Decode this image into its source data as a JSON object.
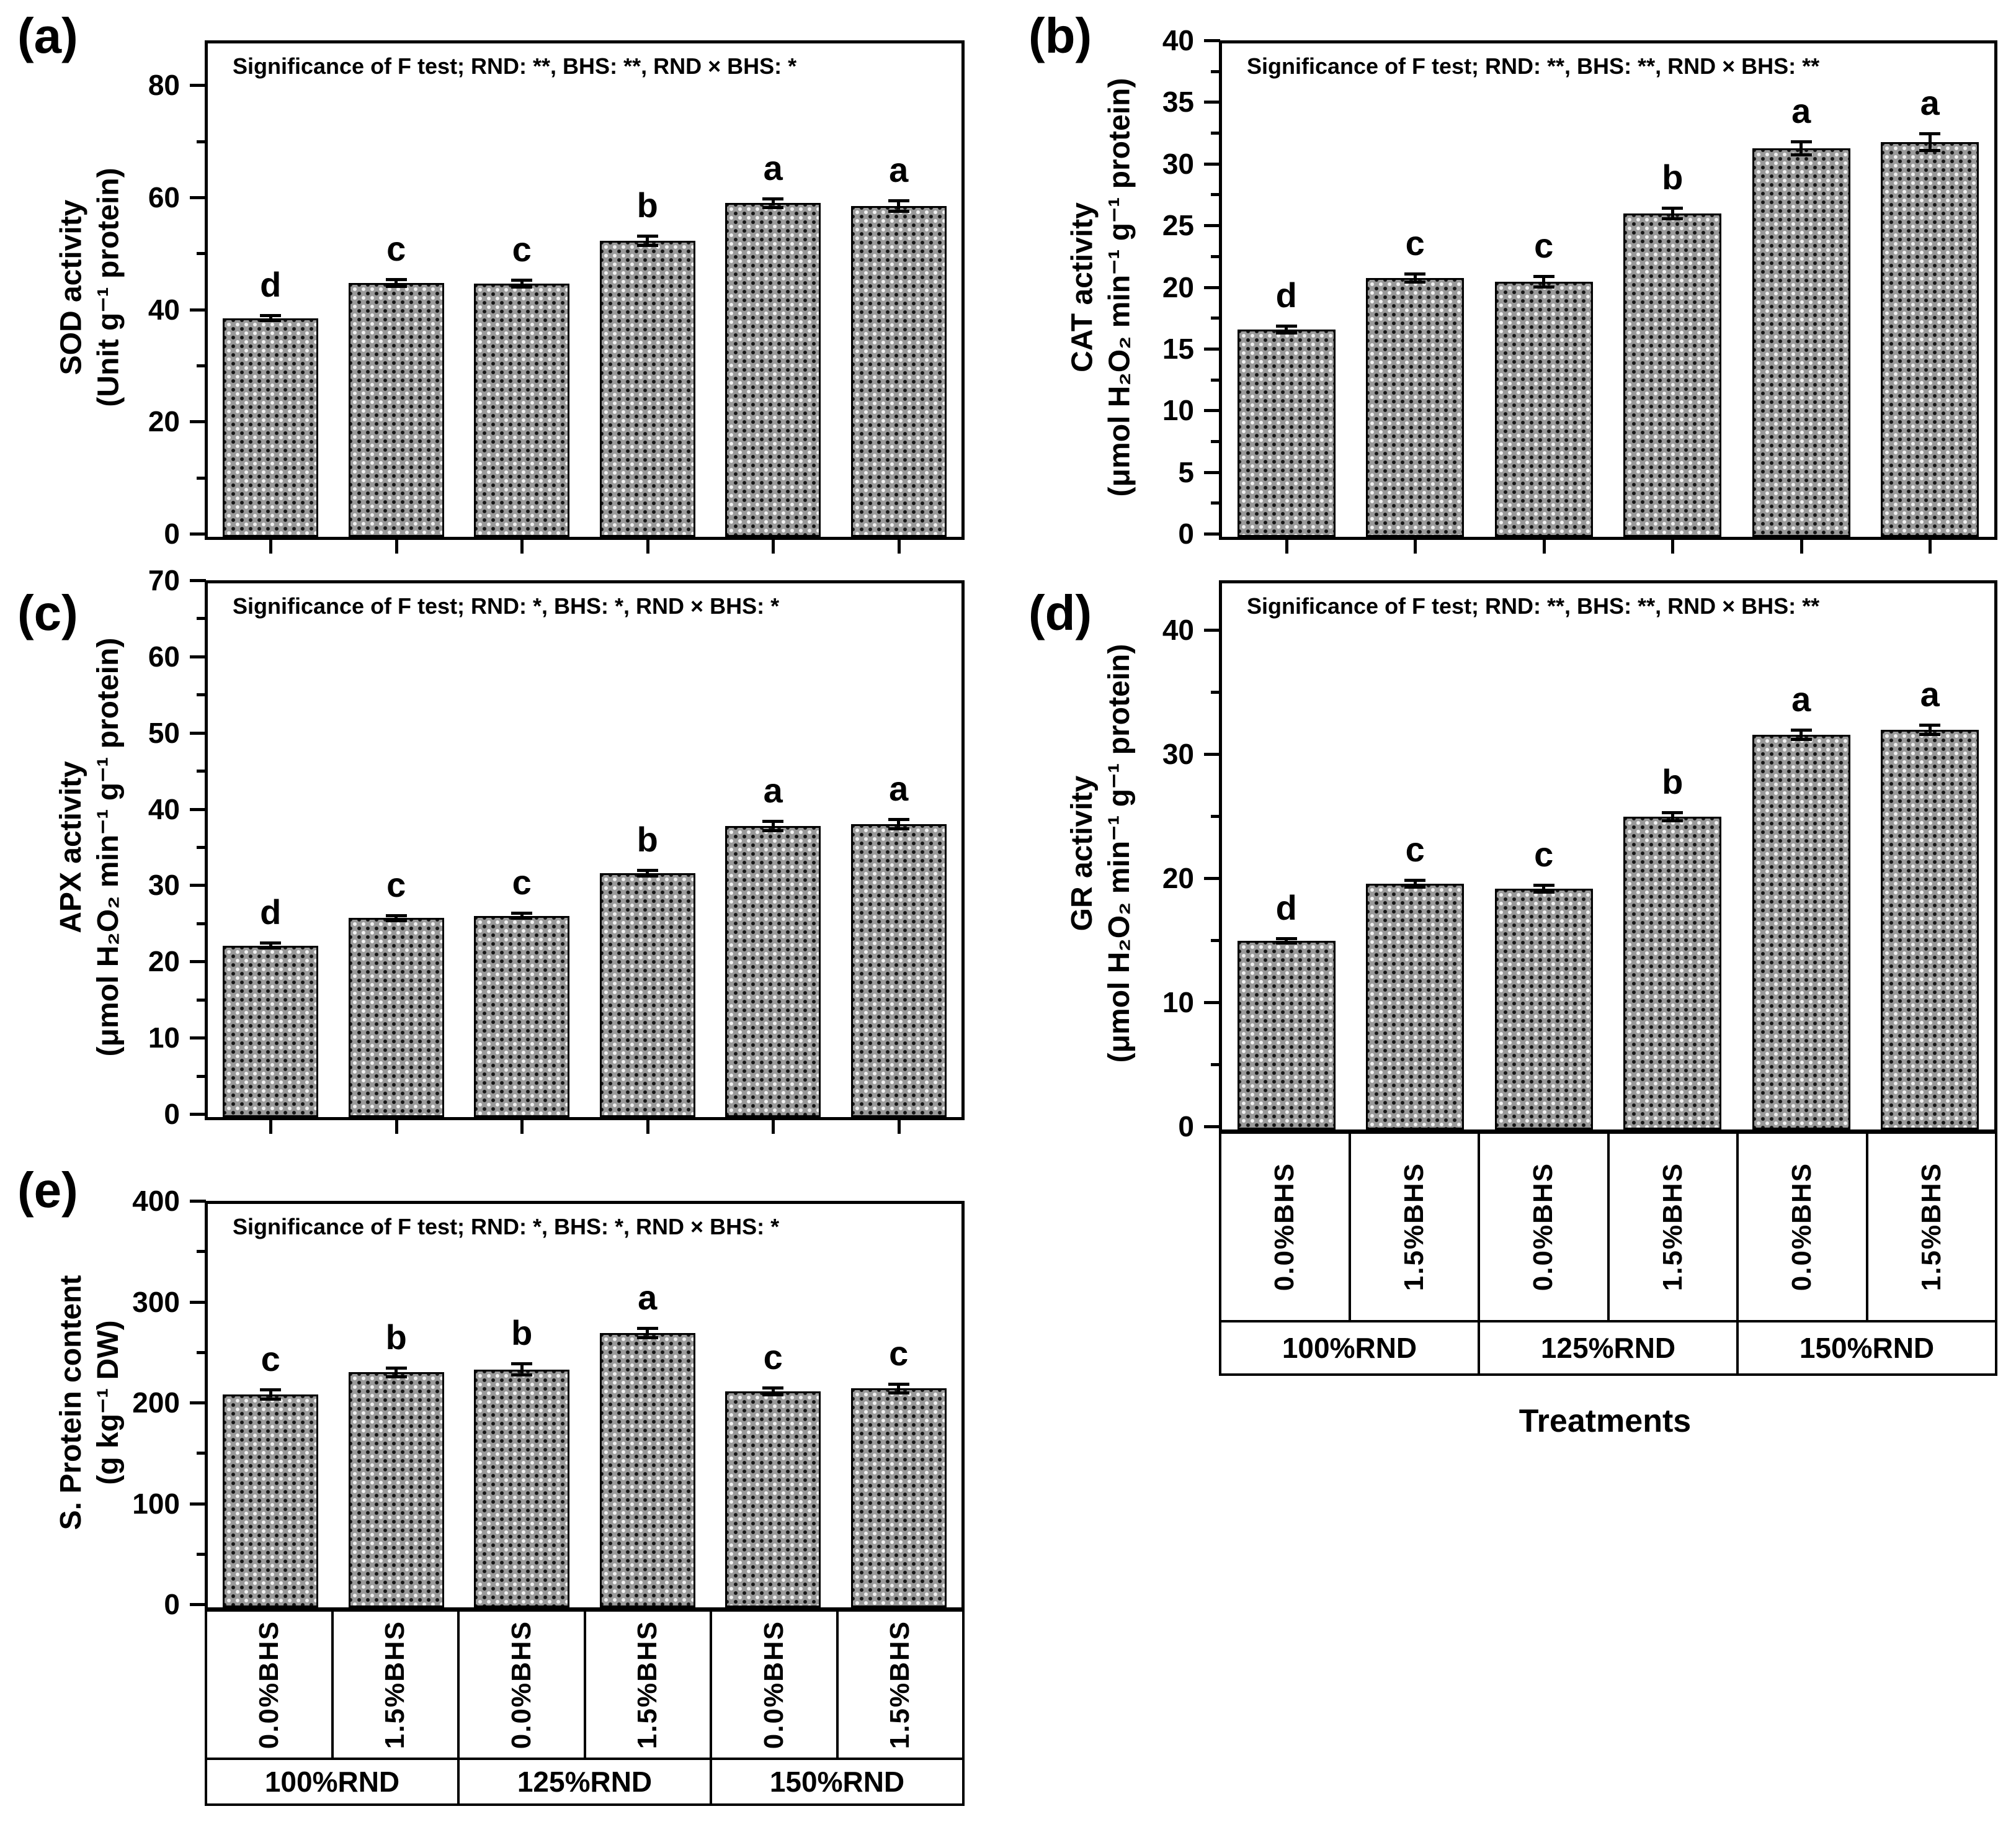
{
  "figure": {
    "xlabel": "Treatments",
    "group_labels": [
      "100%RND",
      "125%RND",
      "150%RND"
    ],
    "bar_labels": [
      "0.0%BHS",
      "1.5%BHS",
      "0.0%BHS",
      "1.5%BHS",
      "0.0%BHS",
      "1.5%BHS"
    ],
    "colors": {
      "ink": "#000000",
      "background": "#ffffff",
      "bar_base": "#999999"
    }
  },
  "chart_data": [
    {
      "id": "a",
      "panel": "(a)",
      "type": "bar",
      "sig_text": "Significance of F test; RND: **, BHS: **, RND × BHS: *",
      "ylabel_line1": "SOD activity",
      "ylabel_line2": "(Unit g⁻¹ protein)",
      "categories": [
        "100%RND 0.0%BHS",
        "100%RND 1.5%BHS",
        "125%RND 0.0%BHS",
        "125%RND 1.5%BHS",
        "150%RND 0.0%BHS",
        "150%RND 1.5%BHS"
      ],
      "values": [
        39.0,
        45.3,
        45.2,
        52.8,
        59.5,
        59.0
      ],
      "errors": [
        0.7,
        0.9,
        0.9,
        1.1,
        1.0,
        1.2
      ],
      "letters": [
        "d",
        "c",
        "c",
        "b",
        "a",
        "a"
      ],
      "ylim": [
        0,
        88
      ],
      "yticks": [
        0,
        20,
        40,
        60,
        80
      ],
      "minor_step": 10,
      "grid": false,
      "show_xlabels": false,
      "ticks_below": true
    },
    {
      "id": "b",
      "panel": "(b)",
      "type": "bar",
      "sig_text": "Significance of F test; RND: **, BHS: **, RND × BHS: **",
      "ylabel_line1": "CAT activity",
      "ylabel_line2": "(μmol H₂O₂ min⁻¹ g⁻¹ protein)",
      "categories": [
        "100%RND 0.0%BHS",
        "100%RND 1.5%BHS",
        "125%RND 0.0%BHS",
        "125%RND 1.5%BHS",
        "150%RND 0.0%BHS",
        "150%RND 1.5%BHS"
      ],
      "values": [
        16.8,
        21.0,
        20.7,
        26.2,
        31.5,
        32.0
      ],
      "errors": [
        0.4,
        0.45,
        0.55,
        0.55,
        0.65,
        0.8
      ],
      "letters": [
        "d",
        "c",
        "c",
        "b",
        "a",
        "a"
      ],
      "ylim": [
        0,
        40
      ],
      "yticks": [
        0,
        5,
        10,
        15,
        20,
        25,
        30,
        35,
        40
      ],
      "minor_step": 2.5,
      "grid": false,
      "show_xlabels": false,
      "ticks_below": true
    },
    {
      "id": "c",
      "panel": "(c)",
      "type": "bar",
      "sig_text": "Significance of F test; RND: *, BHS: *, RND × BHS: *",
      "ylabel_line1": "APX activity",
      "ylabel_line2": "(μmol H₂O₂ min⁻¹ g⁻¹ protein)",
      "categories": [
        "100%RND 0.0%BHS",
        "100%RND 1.5%BHS",
        "125%RND 0.0%BHS",
        "125%RND 1.5%BHS",
        "150%RND 0.0%BHS",
        "150%RND 1.5%BHS"
      ],
      "values": [
        22.5,
        26.1,
        26.4,
        32.0,
        38.2,
        38.4
      ],
      "errors": [
        0.5,
        0.55,
        0.55,
        0.55,
        0.8,
        0.8
      ],
      "letters": [
        "d",
        "c",
        "c",
        "b",
        "a",
        "a"
      ],
      "ylim": [
        0,
        70
      ],
      "yticks": [
        0,
        10,
        20,
        30,
        40,
        50,
        60,
        70
      ],
      "minor_step": 5,
      "grid": false,
      "show_xlabels": false,
      "ticks_below": true
    },
    {
      "id": "d",
      "panel": "(d)",
      "type": "bar",
      "sig_text": "Significance of F test; RND: **, BHS: **, RND × BHS: **",
      "ylabel_line1": "GR activity",
      "ylabel_line2": "(μmol H₂O₂ min⁻¹ g⁻¹ protein)",
      "categories": [
        "100%RND 0.0%BHS",
        "100%RND 1.5%BHS",
        "125%RND 0.0%BHS",
        "125%RND 1.5%BHS",
        "150%RND 0.0%BHS",
        "150%RND 1.5%BHS"
      ],
      "values": [
        15.2,
        19.8,
        19.4,
        25.2,
        31.8,
        32.2
      ],
      "errors": [
        0.3,
        0.4,
        0.4,
        0.45,
        0.5,
        0.5
      ],
      "letters": [
        "d",
        "c",
        "c",
        "b",
        "a",
        "a"
      ],
      "ylim": [
        0,
        44
      ],
      "yticks": [
        0,
        10,
        20,
        30,
        40
      ],
      "minor_step": 5,
      "grid": false,
      "show_xlabels": true,
      "ticks_below": false
    },
    {
      "id": "e",
      "panel": "(e)",
      "type": "bar",
      "sig_text": "Significance of F test; RND: *, BHS: *, RND × BHS: *",
      "ylabel_line1": "S. Protein content",
      "ylabel_line2": "(g kg⁻¹ DW)",
      "categories": [
        "100%RND 0.0%BHS",
        "100%RND 1.5%BHS",
        "125%RND 0.0%BHS",
        "125%RND 1.5%BHS",
        "150%RND 0.0%BHS",
        "150%RND 1.5%BHS"
      ],
      "values": [
        211,
        233,
        236,
        272,
        214,
        217
      ],
      "errors": [
        6,
        6,
        7,
        6,
        5,
        6
      ],
      "letters": [
        "c",
        "b",
        "b",
        "a",
        "c",
        "c"
      ],
      "ylim": [
        0,
        400
      ],
      "yticks": [
        0,
        100,
        200,
        300,
        400
      ],
      "minor_step": 50,
      "grid": false,
      "show_xlabels": true,
      "ticks_below": false
    }
  ]
}
